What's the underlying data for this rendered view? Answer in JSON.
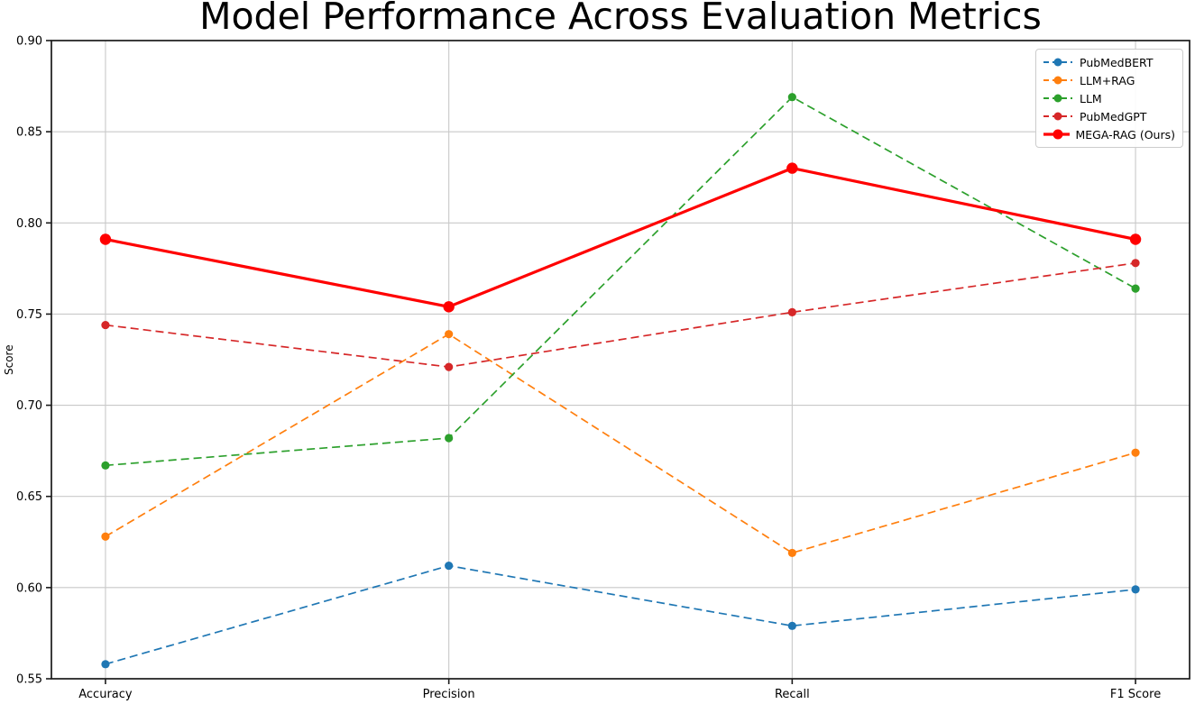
{
  "figure": {
    "background_color": "#ffffff",
    "grid_color": "#c9c9c9",
    "spine_color": "#1a1a1a",
    "text_color": "#000000"
  },
  "chart_data": {
    "type": "line",
    "title": "Model Performance Across Evaluation Metrics",
    "xlabel": "",
    "ylabel": "Score",
    "categories": [
      "Accuracy",
      "Precision",
      "Recall",
      "F1 Score"
    ],
    "ylim": [
      0.55,
      0.9
    ],
    "yticks": [
      0.55,
      0.6,
      0.65,
      0.7,
      0.75,
      0.8,
      0.85,
      0.9
    ],
    "ytick_labels": [
      "0.55",
      "0.60",
      "0.65",
      "0.70",
      "0.75",
      "0.80",
      "0.85",
      "0.90"
    ],
    "grid": true,
    "legend_position": "upper right",
    "series": [
      {
        "name": "PubMedBERT",
        "color": "#1f77b4",
        "line_style": "dashed",
        "values": [
          0.558,
          0.612,
          0.579,
          0.599
        ]
      },
      {
        "name": "LLM+RAG",
        "color": "#ff7f0e",
        "line_style": "dashed",
        "values": [
          0.628,
          0.739,
          0.619,
          0.674
        ]
      },
      {
        "name": "LLM",
        "color": "#2ca02c",
        "line_style": "dashed",
        "values": [
          0.667,
          0.682,
          0.869,
          0.764
        ]
      },
      {
        "name": "PubMedGPT",
        "color": "#d62728",
        "line_style": "dashed",
        "values": [
          0.744,
          0.721,
          0.751,
          0.778
        ]
      },
      {
        "name": "MEGA-RAG (Ours)",
        "color": "#ff0000",
        "line_style": "solid",
        "values": [
          0.791,
          0.754,
          0.83,
          0.791
        ]
      }
    ]
  }
}
